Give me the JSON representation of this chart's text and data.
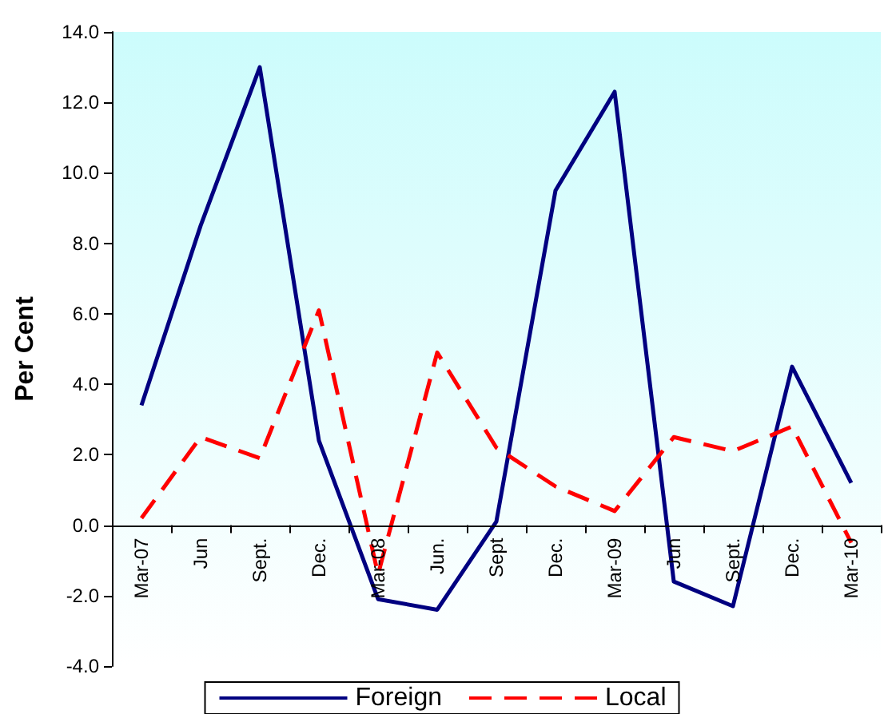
{
  "chart_data": {
    "type": "line",
    "ylabel": "Per Cent",
    "categories": [
      "Mar-07",
      "Jun",
      "Sept.",
      "Dec.",
      "Mar-08",
      "Jun.",
      "Sept",
      "Dec.",
      "Mar-09",
      "Jun",
      "Sept.",
      "Dec.",
      "Mar-10"
    ],
    "series": [
      {
        "name": "Foreign",
        "color": "#000080",
        "line_style": "solid",
        "values": [
          3.4,
          8.5,
          13.0,
          2.4,
          -2.1,
          -2.4,
          0.1,
          9.5,
          12.3,
          -1.6,
          -2.3,
          4.5,
          1.2
        ]
      },
      {
        "name": "Local",
        "color": "#ff0000",
        "line_style": "dashed",
        "values": [
          0.2,
          2.5,
          1.9,
          6.1,
          -1.4,
          4.9,
          2.2,
          1.1,
          0.4,
          2.5,
          2.1,
          2.8,
          -0.5
        ]
      }
    ],
    "ylim": [
      -4,
      14
    ],
    "yticks": [
      {
        "value": -4,
        "label": "-4.0"
      },
      {
        "value": -2,
        "label": "-2.0"
      },
      {
        "value": 0,
        "label": "0.0"
      },
      {
        "value": 2,
        "label": "2.0"
      },
      {
        "value": 4,
        "label": "4.0"
      },
      {
        "value": 6,
        "label": "6.0"
      },
      {
        "value": 8,
        "label": "8.0"
      },
      {
        "value": 10,
        "label": "10.0"
      },
      {
        "value": 12,
        "label": "12.0"
      },
      {
        "value": 14,
        "label": "14.0"
      }
    ],
    "grid": false,
    "legend": "bottom",
    "marker": "none"
  }
}
